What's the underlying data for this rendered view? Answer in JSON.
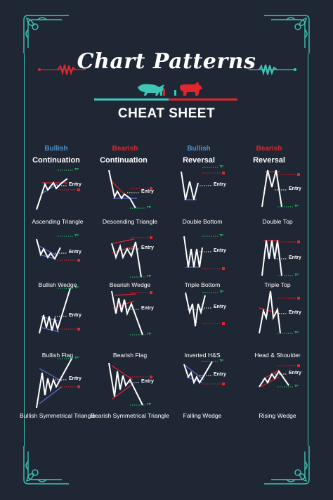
{
  "title": "Chart Patterns",
  "subtitle": "CHEAT SHEET",
  "colors": {
    "background": "#1f2634",
    "accent_teal": "#3ec6b7",
    "bearish_red": "#e0262d",
    "bullish_blue": "#4f93c9",
    "take_profit_green": "#27c86a",
    "trendline_blue": "#5c6fd6",
    "price_line": "#ffffff"
  },
  "icons": [
    "bull-icon",
    "bear-icon",
    "corner-ornament-icon",
    "wave-ornament-icon"
  ],
  "columns": [
    {
      "line1": "Bullish",
      "line2": "Continuation",
      "color": "#4f93c9"
    },
    {
      "line1": "Bearish",
      "line2": "Continuation",
      "color": "#e0262d"
    },
    {
      "line1": "Bullish",
      "line2": "Reversal",
      "color": "#4f93c9"
    },
    {
      "line1": "Bearish",
      "line2": "Reversal",
      "color": "#e0262d"
    }
  ],
  "patterns": [
    {
      "name": "Ascending Triangle",
      "entry": "Entry",
      "tp": "TP"
    },
    {
      "name": "Descending Triangle",
      "entry": "Entry",
      "tp": "TP"
    },
    {
      "name": "Double Bottom",
      "entry": "Entry",
      "tp": "TP"
    },
    {
      "name": "Double Top",
      "entry": "Entry",
      "tp": "TP"
    },
    {
      "name": "Bullish Wedge",
      "entry": "Entry",
      "tp": "TP"
    },
    {
      "name": "Bearish Wedge",
      "entry": "Entry",
      "tp": "TP"
    },
    {
      "name": "Triple Bottom",
      "entry": "Entry",
      "tp": "TP"
    },
    {
      "name": "Triple Top",
      "entry": "Entry",
      "tp": "TP"
    },
    {
      "name": "Bullish Flag",
      "entry": "Entry",
      "tp": "TP"
    },
    {
      "name": "Bearish Flag",
      "entry": "Entry",
      "tp": "TP"
    },
    {
      "name": "Inverted H&S",
      "entry": "Entry",
      "tp": "TP"
    },
    {
      "name": "Head & Shoulder",
      "entry": "Entry",
      "tp": "TP"
    },
    {
      "name": "Bullish Symmetrical Triangle",
      "entry": "Entry",
      "tp": "TP"
    },
    {
      "name": "Bearish Symmetrical Triangle",
      "entry": "Entry",
      "tp": "TP"
    },
    {
      "name": "Falling Wedge",
      "entry": "Entry",
      "tp": "TP"
    },
    {
      "name": "Rising Wedge",
      "entry": "Entry",
      "tp": "TP"
    }
  ]
}
